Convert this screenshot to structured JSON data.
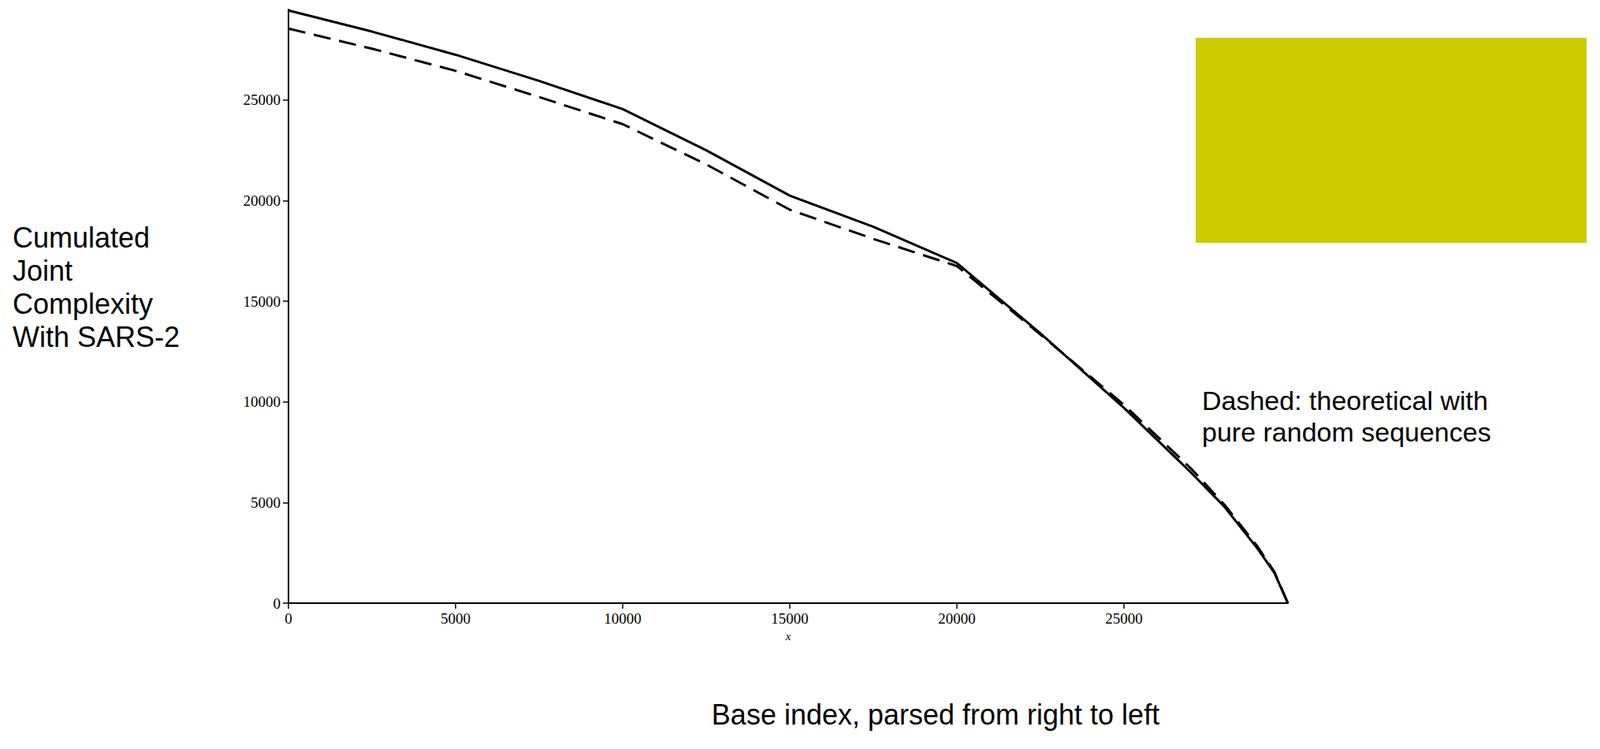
{
  "chart_data": {
    "type": "line",
    "ylabel": "Cumulated Joint Complexity With SARS-2",
    "xlabel": "x",
    "x_title": "Base index, parsed from right to left",
    "annotation": "Dashed: theoretical with pure random sequences",
    "x": [
      0,
      2500,
      5000,
      7500,
      10000,
      12500,
      15000,
      17500,
      20000,
      22500,
      25000,
      27000,
      28000,
      29000,
      29500,
      29903
    ],
    "series": [
      {
        "color": "#000000",
        "line_style": "solid",
        "values": [
          29450,
          28400,
          27250,
          25950,
          24550,
          22500,
          20250,
          18700,
          16900,
          13400,
          9700,
          6500,
          4800,
          2700,
          1500,
          0
        ]
      },
      {
        "color": "#000000",
        "line_style": "dashed",
        "values": [
          28550,
          27550,
          26450,
          25150,
          23800,
          21800,
          19550,
          18100,
          16750,
          13350,
          9850,
          6700,
          4900,
          2800,
          1550,
          0
        ]
      }
    ],
    "xlim": [
      0,
      29903
    ],
    "ylim": [
      0,
      29500
    ],
    "xticks": [
      0,
      5000,
      10000,
      15000,
      20000,
      25000
    ],
    "yticks": [
      0,
      5000,
      10000,
      15000,
      20000,
      25000
    ],
    "grid": false
  }
}
